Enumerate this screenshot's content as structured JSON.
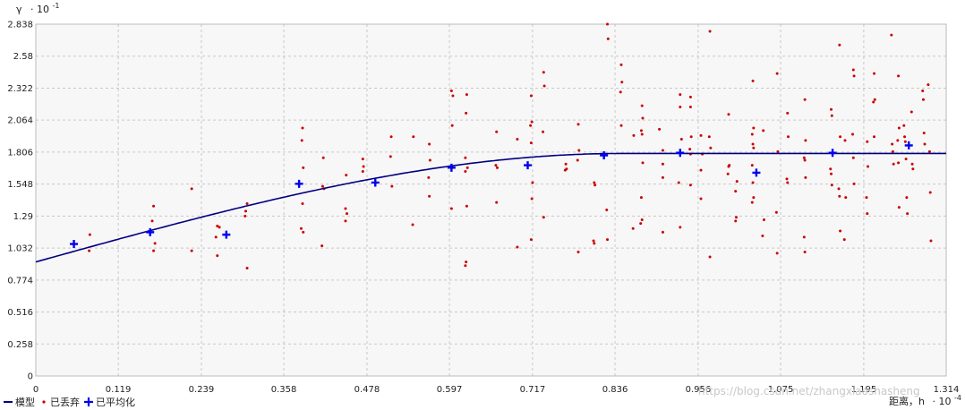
{
  "chart_data": {
    "type": "scatter",
    "y_axis": {
      "symbol": "γ",
      "scale": "· 10",
      "exp": "-1",
      "ylim": [
        0,
        2.838
      ],
      "ticks": [
        "0",
        "0.258",
        "0.516",
        "0.774",
        "1.032",
        "1.29",
        "1.548",
        "1.806",
        "2.064",
        "2.322",
        "2.58",
        "2.838"
      ]
    },
    "x_axis": {
      "label": "距离，h",
      "scale": "· 10",
      "exp": "-4",
      "xlim": [
        0,
        1.314
      ],
      "ticks": [
        "0",
        "0.119",
        "0.239",
        "0.358",
        "0.478",
        "0.597",
        "0.717",
        "0.836",
        "0.956",
        "1.075",
        "1.195",
        "1.314"
      ]
    },
    "grid": true,
    "legend_position": "bottom-left",
    "colors": {
      "model": "#000080",
      "discarded": "#cc0000",
      "averaged": "#0000ee",
      "grid": "#c8c8c8",
      "plot_bg": "#f7f7f7"
    },
    "legend": [
      "模型",
      "已丢弃",
      "已平均化"
    ],
    "model": {
      "nugget": 0.92,
      "sill": 1.795,
      "range": 0.846
    },
    "averaged": [
      [
        0.055,
        1.065
      ],
      [
        0.165,
        1.16
      ],
      [
        0.275,
        1.14
      ],
      [
        0.38,
        1.55
      ],
      [
        0.49,
        1.56
      ],
      [
        0.6,
        1.68
      ],
      [
        0.71,
        1.7
      ],
      [
        0.82,
        1.78
      ],
      [
        0.93,
        1.8
      ],
      [
        1.04,
        1.64
      ],
      [
        1.15,
        1.8
      ],
      [
        1.26,
        1.86
      ]
    ],
    "discarded": [
      [
        0.078,
        1.14
      ],
      [
        0.077,
        1.01
      ],
      [
        0.17,
        1.37
      ],
      [
        0.168,
        1.25
      ],
      [
        0.172,
        1.07
      ],
      [
        0.17,
        1.01
      ],
      [
        0.225,
        1.51
      ],
      [
        0.225,
        1.01
      ],
      [
        0.262,
        1.21
      ],
      [
        0.265,
        1.2
      ],
      [
        0.26,
        1.12
      ],
      [
        0.262,
        0.97
      ],
      [
        0.305,
        1.39
      ],
      [
        0.303,
        1.33
      ],
      [
        0.302,
        1.29
      ],
      [
        0.305,
        0.87
      ],
      [
        0.385,
        2.0
      ],
      [
        0.384,
        1.9
      ],
      [
        0.386,
        1.68
      ],
      [
        0.385,
        1.39
      ],
      [
        0.383,
        1.19
      ],
      [
        0.386,
        1.16
      ],
      [
        0.415,
        1.76
      ],
      [
        0.414,
        1.53
      ],
      [
        0.416,
        1.51
      ],
      [
        0.413,
        1.05
      ],
      [
        0.448,
        1.62
      ],
      [
        0.447,
        1.35
      ],
      [
        0.449,
        1.31
      ],
      [
        0.447,
        1.25
      ],
      [
        0.472,
        1.75
      ],
      [
        0.473,
        1.69
      ],
      [
        0.472,
        1.65
      ],
      [
        0.513,
        1.93
      ],
      [
        0.512,
        1.77
      ],
      [
        0.514,
        1.53
      ],
      [
        0.545,
        1.93
      ],
      [
        0.544,
        1.22
      ],
      [
        0.568,
        1.87
      ],
      [
        0.569,
        1.74
      ],
      [
        0.567,
        1.6
      ],
      [
        0.568,
        1.45
      ],
      [
        0.6,
        2.3
      ],
      [
        0.602,
        2.26
      ],
      [
        0.601,
        2.02
      ],
      [
        0.6,
        1.35
      ],
      [
        0.622,
        2.27
      ],
      [
        0.621,
        2.12
      ],
      [
        0.62,
        1.76
      ],
      [
        0.623,
        1.68
      ],
      [
        0.62,
        1.65
      ],
      [
        0.622,
        1.37
      ],
      [
        0.621,
        0.92
      ],
      [
        0.62,
        0.89
      ],
      [
        0.665,
        1.97
      ],
      [
        0.664,
        1.7
      ],
      [
        0.666,
        1.68
      ],
      [
        0.665,
        1.4
      ],
      [
        0.695,
        1.91
      ],
      [
        0.695,
        1.04
      ],
      [
        0.715,
        2.26
      ],
      [
        0.716,
        2.05
      ],
      [
        0.714,
        2.02
      ],
      [
        0.715,
        1.88
      ],
      [
        0.717,
        1.56
      ],
      [
        0.716,
        1.43
      ],
      [
        0.715,
        1.1
      ],
      [
        0.733,
        2.45
      ],
      [
        0.734,
        2.34
      ],
      [
        0.732,
        1.97
      ],
      [
        0.733,
        1.28
      ],
      [
        0.765,
        1.71
      ],
      [
        0.766,
        1.67
      ],
      [
        0.764,
        1.66
      ],
      [
        0.783,
        2.03
      ],
      [
        0.784,
        1.82
      ],
      [
        0.782,
        1.74
      ],
      [
        0.783,
        1.0
      ],
      [
        0.806,
        1.56
      ],
      [
        0.807,
        1.54
      ],
      [
        0.805,
        1.09
      ],
      [
        0.806,
        1.07
      ],
      [
        0.825,
        2.838
      ],
      [
        0.826,
        2.72
      ],
      [
        0.824,
        1.34
      ],
      [
        0.825,
        1.1
      ],
      [
        0.845,
        2.51
      ],
      [
        0.846,
        2.37
      ],
      [
        0.844,
        2.29
      ],
      [
        0.845,
        2.02
      ],
      [
        0.863,
        1.94
      ],
      [
        0.862,
        1.19
      ],
      [
        0.875,
        2.18
      ],
      [
        0.876,
        2.08
      ],
      [
        0.874,
        1.98
      ],
      [
        0.875,
        1.95
      ],
      [
        0.876,
        1.72
      ],
      [
        0.874,
        1.44
      ],
      [
        0.875,
        1.26
      ],
      [
        0.873,
        1.23
      ],
      [
        0.9,
        1.99
      ],
      [
        0.905,
        1.82
      ],
      [
        0.905,
        1.71
      ],
      [
        0.905,
        1.6
      ],
      [
        0.905,
        1.16
      ],
      [
        0.93,
        2.27
      ],
      [
        0.93,
        2.17
      ],
      [
        0.932,
        1.91
      ],
      [
        0.928,
        1.56
      ],
      [
        0.93,
        1.2
      ],
      [
        0.945,
        2.25
      ],
      [
        0.945,
        2.17
      ],
      [
        0.946,
        1.93
      ],
      [
        0.944,
        1.83
      ],
      [
        0.945,
        1.79
      ],
      [
        0.945,
        1.54
      ],
      [
        0.96,
        1.94
      ],
      [
        0.962,
        1.79
      ],
      [
        0.96,
        1.66
      ],
      [
        0.96,
        1.43
      ],
      [
        0.973,
        2.78
      ],
      [
        0.972,
        1.93
      ],
      [
        0.974,
        1.84
      ],
      [
        0.973,
        0.96
      ],
      [
        1.0,
        2.11
      ],
      [
        1.001,
        1.7
      ],
      [
        1.0,
        1.69
      ],
      [
        0.999,
        1.63
      ],
      [
        1.012,
        1.57
      ],
      [
        1.01,
        1.49
      ],
      [
        1.011,
        1.28
      ],
      [
        1.01,
        1.25
      ],
      [
        1.035,
        2.38
      ],
      [
        1.036,
        2.0
      ],
      [
        1.034,
        1.95
      ],
      [
        1.035,
        1.87
      ],
      [
        1.036,
        1.84
      ],
      [
        1.034,
        1.7
      ],
      [
        1.035,
        1.56
      ],
      [
        1.036,
        1.44
      ],
      [
        1.034,
        1.4
      ],
      [
        1.05,
        1.98
      ],
      [
        1.051,
        1.26
      ],
      [
        1.049,
        1.13
      ],
      [
        1.07,
        2.44
      ],
      [
        1.071,
        1.81
      ],
      [
        1.069,
        1.32
      ],
      [
        1.07,
        0.99
      ],
      [
        1.085,
        2.12
      ],
      [
        1.086,
        1.93
      ],
      [
        1.084,
        1.59
      ],
      [
        1.085,
        1.56
      ],
      [
        1.11,
        2.23
      ],
      [
        1.111,
        1.9
      ],
      [
        1.109,
        1.76
      ],
      [
        1.11,
        1.74
      ],
      [
        1.111,
        1.6
      ],
      [
        1.109,
        1.12
      ],
      [
        1.11,
        1.0
      ],
      [
        1.148,
        2.15
      ],
      [
        1.149,
        2.1
      ],
      [
        1.147,
        1.67
      ],
      [
        1.148,
        1.63
      ],
      [
        1.149,
        1.54
      ],
      [
        1.16,
        2.67
      ],
      [
        1.161,
        1.93
      ],
      [
        1.159,
        1.51
      ],
      [
        1.16,
        1.45
      ],
      [
        1.161,
        1.17
      ],
      [
        1.168,
        1.9
      ],
      [
        1.169,
        1.44
      ],
      [
        1.167,
        1.1
      ],
      [
        1.18,
        2.47
      ],
      [
        1.181,
        2.42
      ],
      [
        1.179,
        1.95
      ],
      [
        1.18,
        1.76
      ],
      [
        1.181,
        1.55
      ],
      [
        1.2,
        1.89
      ],
      [
        1.201,
        1.69
      ],
      [
        1.199,
        1.44
      ],
      [
        1.2,
        1.31
      ],
      [
        1.21,
        2.44
      ],
      [
        1.211,
        2.23
      ],
      [
        1.209,
        2.21
      ],
      [
        1.21,
        1.93
      ],
      [
        1.235,
        2.75
      ],
      [
        1.236,
        1.87
      ],
      [
        1.237,
        1.81
      ],
      [
        1.238,
        1.71
      ],
      [
        1.245,
        2.42
      ],
      [
        1.246,
        2.0
      ],
      [
        1.244,
        1.9
      ],
      [
        1.245,
        1.72
      ],
      [
        1.246,
        1.36
      ],
      [
        1.253,
        2.02
      ],
      [
        1.254,
        1.93
      ],
      [
        1.255,
        1.89
      ],
      [
        1.256,
        1.75
      ],
      [
        1.257,
        1.44
      ],
      [
        1.258,
        1.31
      ],
      [
        1.265,
        1.71
      ],
      [
        1.266,
        1.67
      ],
      [
        1.264,
        2.13
      ],
      [
        1.28,
        2.3
      ],
      [
        1.281,
        2.23
      ],
      [
        1.282,
        1.96
      ],
      [
        1.283,
        1.87
      ],
      [
        1.29,
        1.81
      ],
      [
        1.291,
        1.48
      ],
      [
        1.292,
        1.09
      ],
      [
        1.288,
        2.35
      ]
    ]
  }
}
